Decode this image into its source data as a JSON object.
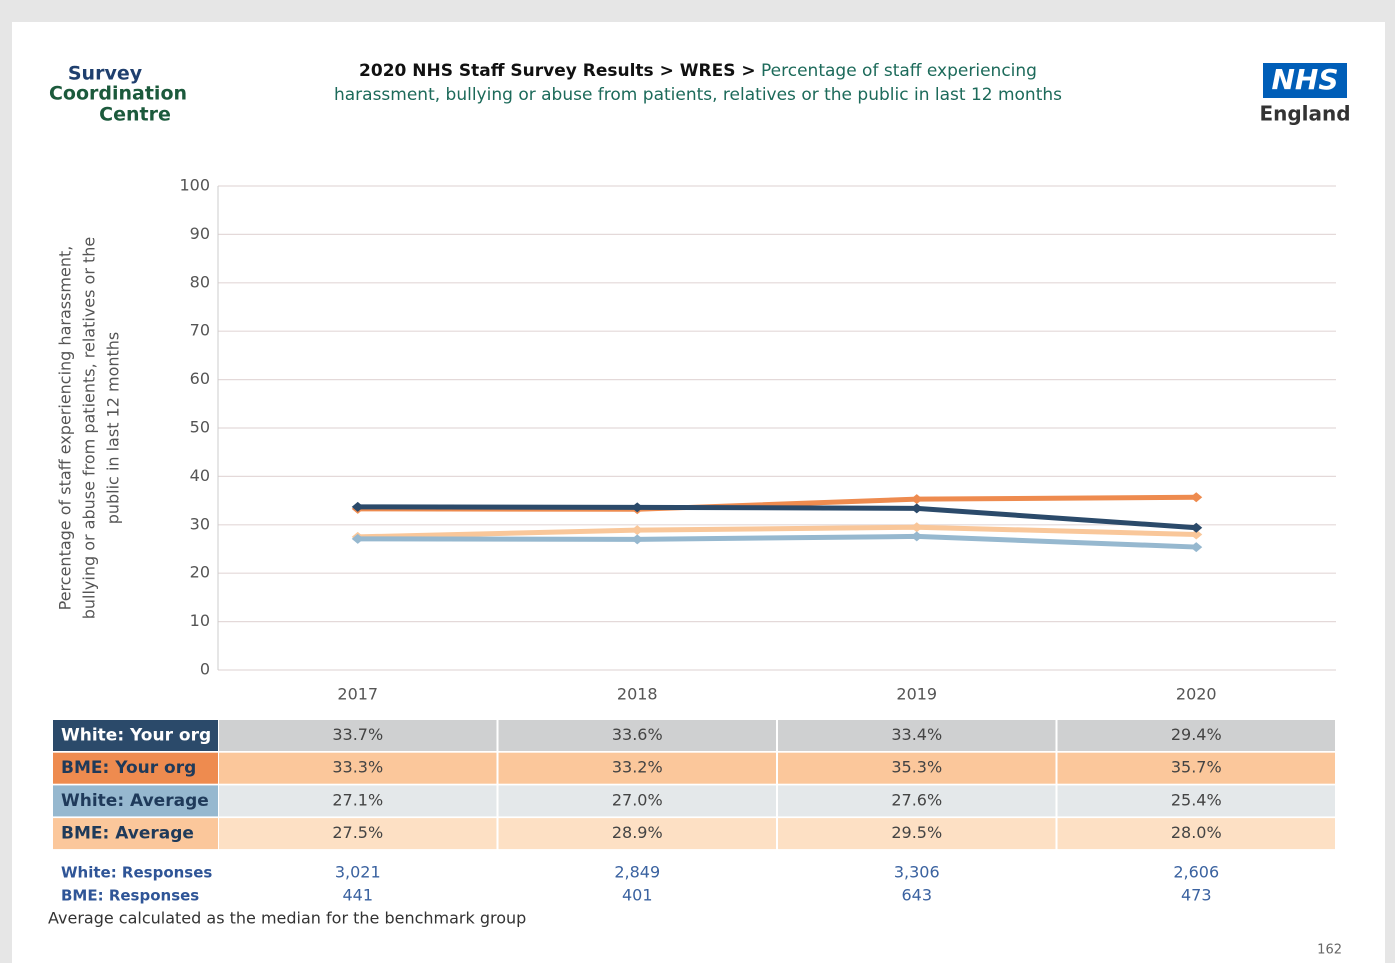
{
  "logo": {
    "lines": [
      "Survey",
      "Coordination",
      "Centre"
    ]
  },
  "nhs_logo": {
    "mark": "NHS",
    "region": "England"
  },
  "chart_data": {
    "type": "line",
    "title": "2020 NHS Staff Survey Results > WRES >",
    "subtitle": [
      "Percentage of staff experiencing",
      "harassment, bullying or abuse from patients, relatives or the public in last 12 months"
    ],
    "y_label": [
      "Percentage of staff experiencing harassment,",
      "bullying or abuse from patients, relatives or the",
      "public in last 12 months"
    ],
    "categories": [
      "2017",
      "2018",
      "2019",
      "2020"
    ],
    "ylim": [
      0,
      100
    ],
    "yticks": [
      0,
      10,
      20,
      30,
      40,
      50,
      60,
      70,
      80,
      90,
      100
    ],
    "grid": true,
    "series": [
      {
        "name": "White: Your org",
        "color": "#2b4a6a",
        "values": [
          33.7,
          33.6,
          33.4,
          29.4
        ],
        "value_labels": [
          "33.7%",
          "33.6%",
          "33.4%",
          "29.4%"
        ]
      },
      {
        "name": "BME: Your org",
        "color": "#ee8b4f",
        "values": [
          33.3,
          33.2,
          35.3,
          35.7
        ],
        "value_labels": [
          "33.3%",
          "33.2%",
          "35.3%",
          "35.7%"
        ]
      },
      {
        "name": "White: Average",
        "color": "#96b8cf",
        "values": [
          27.1,
          27.0,
          27.6,
          25.4
        ],
        "value_labels": [
          "27.1%",
          "27.0%",
          "27.6%",
          "25.4%"
        ]
      },
      {
        "name": "BME: Average",
        "color": "#f9c79a",
        "values": [
          27.5,
          28.9,
          29.5,
          28.0
        ],
        "value_labels": [
          "27.5%",
          "28.9%",
          "29.5%",
          "28.0%"
        ]
      }
    ],
    "responses": [
      {
        "name": "White: Responses",
        "values": [
          "3,021",
          "2,849",
          "3,306",
          "2,606"
        ]
      },
      {
        "name": "BME: Responses",
        "values": [
          "441",
          "401",
          "643",
          "473"
        ]
      }
    ],
    "footnote": "Average calculated as the median for the benchmark group",
    "page_number": "162"
  }
}
